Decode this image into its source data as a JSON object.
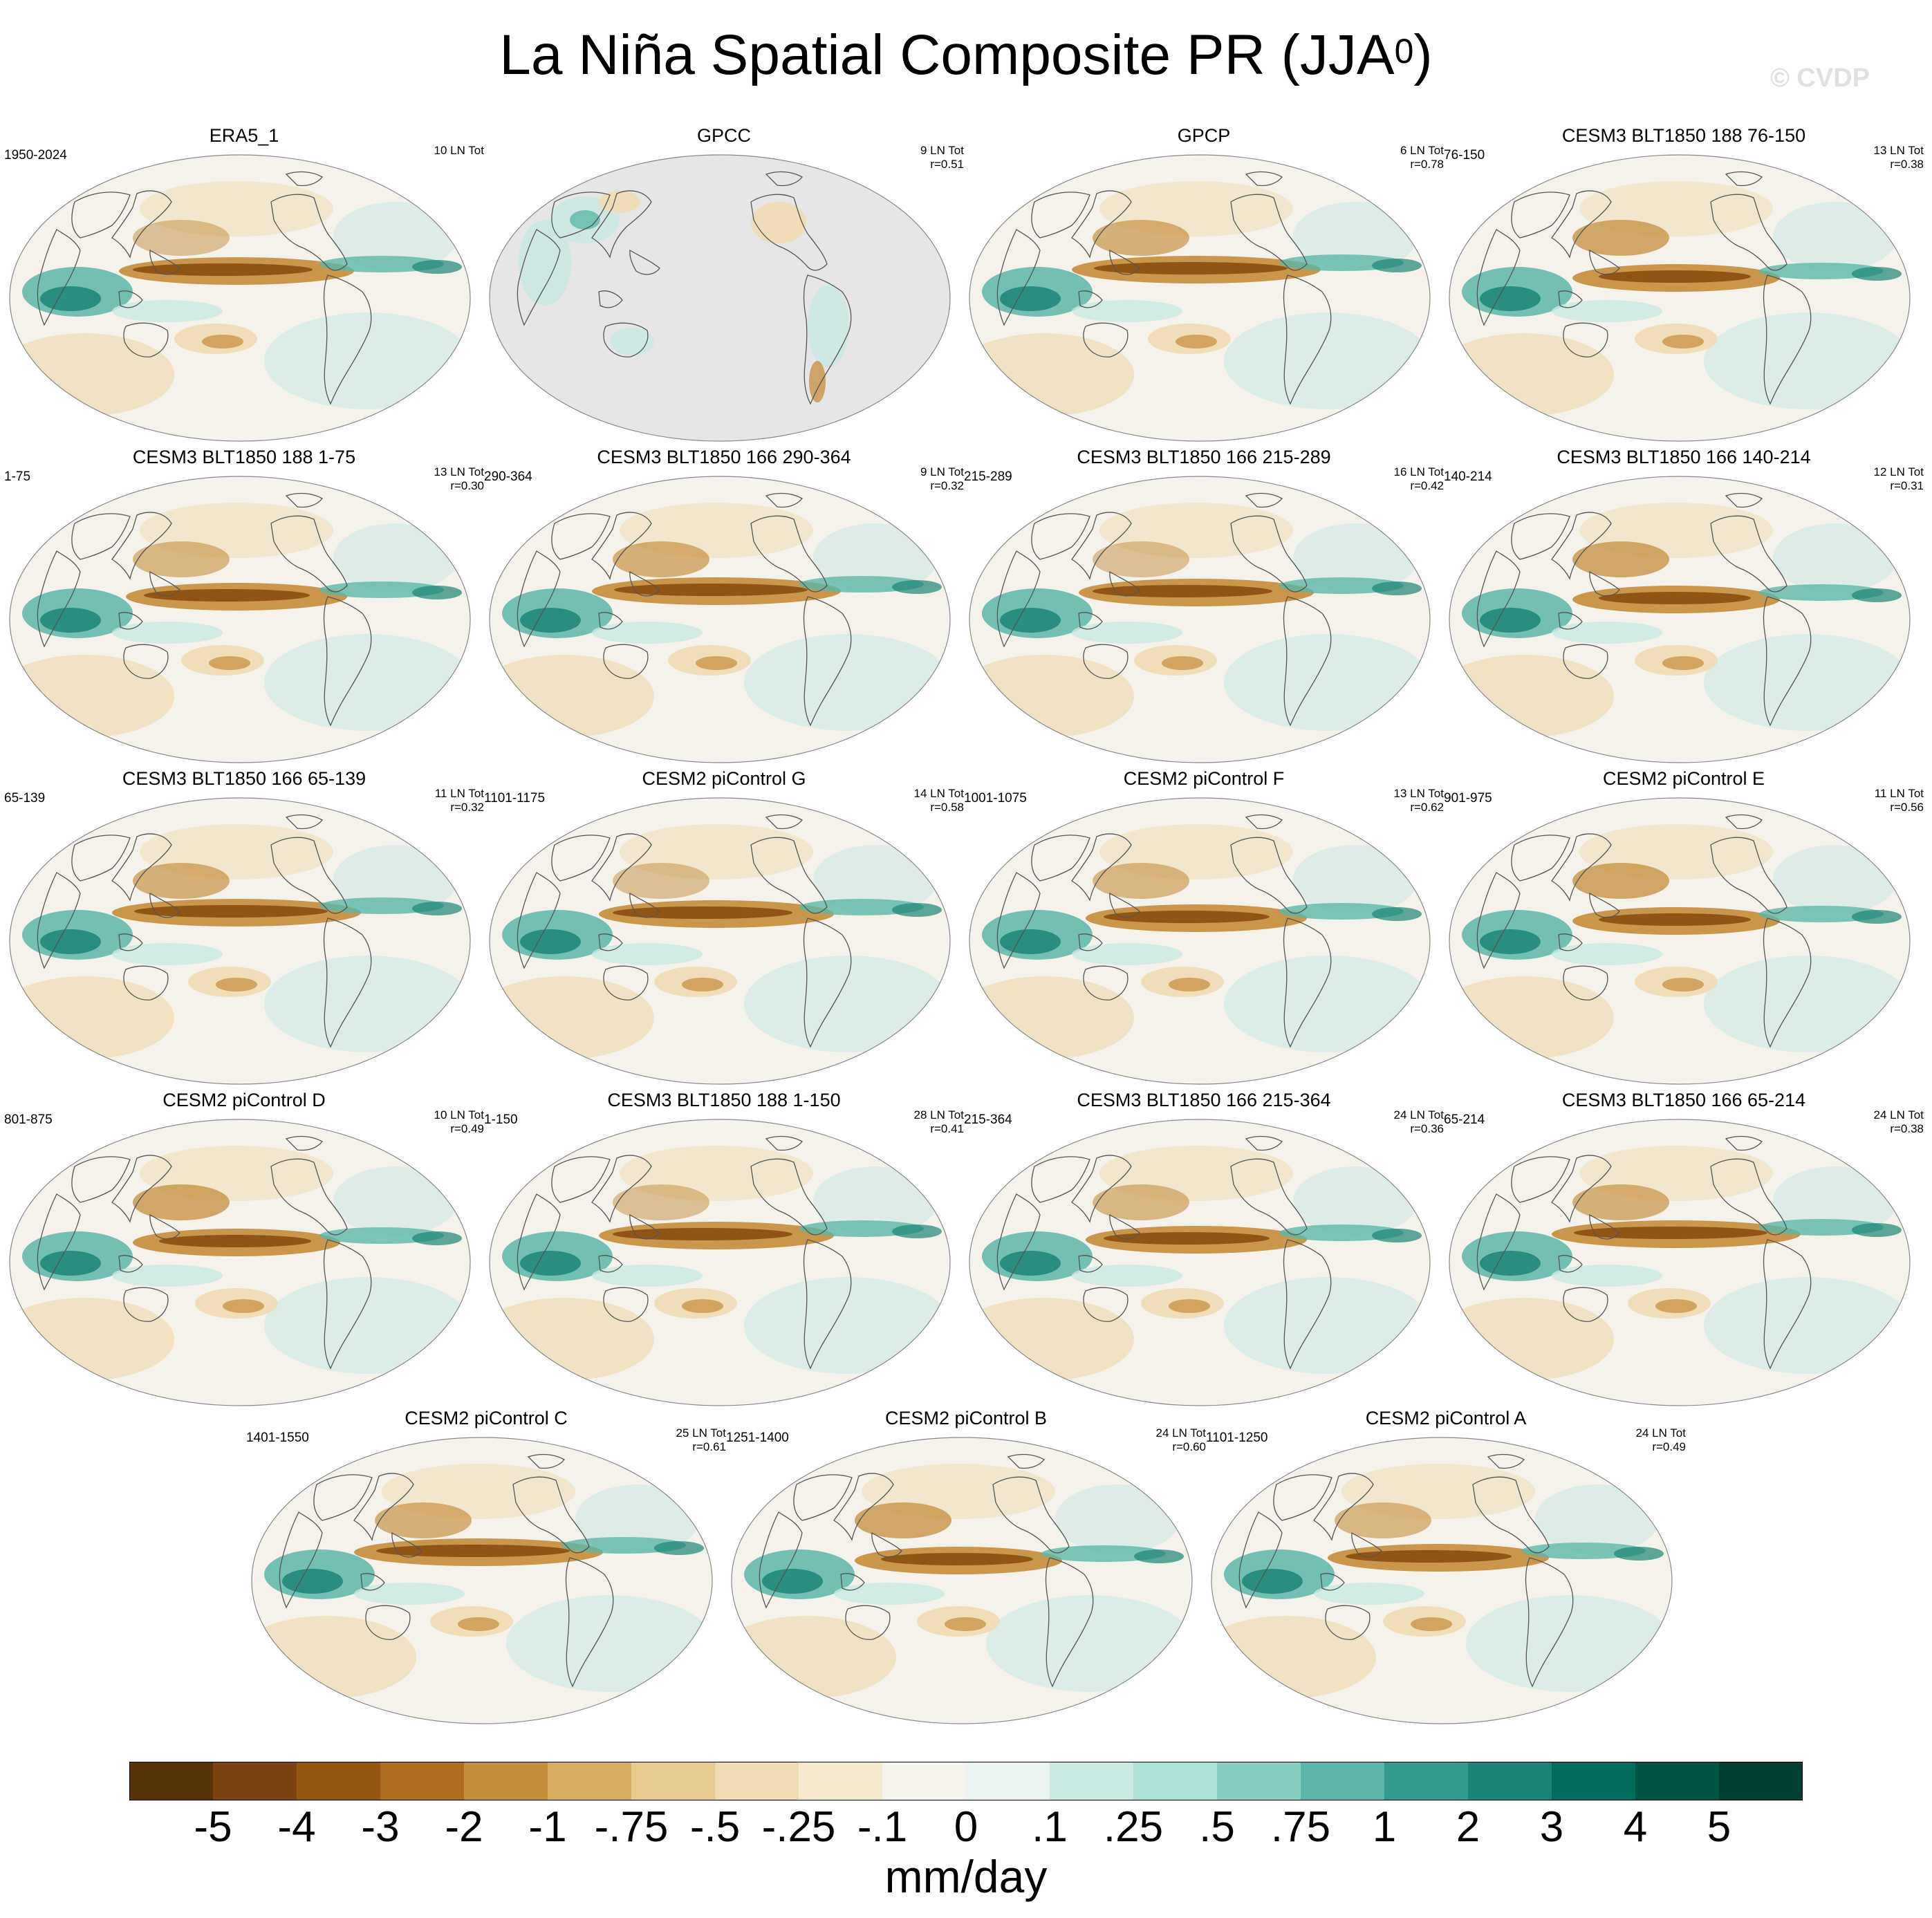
{
  "title": {
    "main": "La Niña Spatial Composite PR (JJA",
    "sup": "0",
    "close": ")"
  },
  "watermark": "© CVDP",
  "panels": [
    {
      "name": "ERA5_1",
      "years": "1950-2024",
      "count": "10 LN Tot",
      "r": "",
      "gpcc": false,
      "style": 0
    },
    {
      "name": "GPCC",
      "years": "",
      "count": "9 LN Tot",
      "r": "r=0.51",
      "gpcc": true,
      "style": 1
    },
    {
      "name": "GPCP",
      "years": "",
      "count": "6 LN Tot",
      "r": "r=0.78",
      "gpcc": false,
      "style": 2
    },
    {
      "name": "CESM3 BLT1850 188 76-150",
      "years": "76-150",
      "count": "13 LN Tot",
      "r": "r=0.38",
      "gpcc": false,
      "style": 3
    },
    {
      "name": "CESM3 BLT1850 188 1-75",
      "years": "1-75",
      "count": "13 LN Tot",
      "r": "r=0.30",
      "gpcc": false,
      "style": 1
    },
    {
      "name": "CESM3 BLT1850 166 290-364",
      "years": "290-364",
      "count": "9 LN Tot",
      "r": "r=0.32",
      "gpcc": false,
      "style": 2
    },
    {
      "name": "CESM3 BLT1850 166 215-289",
      "years": "215-289",
      "count": "16 LN Tot",
      "r": "r=0.42",
      "gpcc": false,
      "style": 0
    },
    {
      "name": "CESM3 BLT1850 166 140-214",
      "years": "140-214",
      "count": "12 LN Tot",
      "r": "r=0.31",
      "gpcc": false,
      "style": 3
    },
    {
      "name": "CESM3 BLT1850 166 65-139",
      "years": "65-139",
      "count": "11 LN Tot",
      "r": "r=0.32",
      "gpcc": false,
      "style": 2
    },
    {
      "name": "CESM2 piControl G",
      "years": "1101-1175",
      "count": "14 LN Tot",
      "r": "r=0.58",
      "gpcc": false,
      "style": 0
    },
    {
      "name": "CESM2 piControl F",
      "years": "1001-1075",
      "count": "13 LN Tot",
      "r": "r=0.62",
      "gpcc": false,
      "style": 1
    },
    {
      "name": "CESM2 piControl E",
      "years": "901-975",
      "count": "11 LN Tot",
      "r": "r=0.56",
      "gpcc": false,
      "style": 3
    },
    {
      "name": "CESM2 piControl D",
      "years": "801-875",
      "count": "10 LN Tot",
      "r": "r=0.49",
      "gpcc": false,
      "style": 3
    },
    {
      "name": "CESM3 BLT1850 188 1-150",
      "years": "1-150",
      "count": "28 LN Tot",
      "r": "r=0.41",
      "gpcc": false,
      "style": 0
    },
    {
      "name": "CESM3 BLT1850 166 215-364",
      "years": "215-364",
      "count": "24 LN Tot",
      "r": "r=0.36",
      "gpcc": false,
      "style": 1
    },
    {
      "name": "CESM3 BLT1850 166 65-214",
      "years": "65-214",
      "count": "24 LN Tot",
      "r": "r=0.38",
      "gpcc": false,
      "style": 2
    },
    {
      "name": "CESM2 piControl C",
      "years": "1401-1550",
      "count": "25 LN Tot",
      "r": "r=0.61",
      "gpcc": false,
      "style": 2
    },
    {
      "name": "CESM2 piControl B",
      "years": "1251-1400",
      "count": "24 LN Tot",
      "r": "r=0.60",
      "gpcc": false,
      "style": 3
    },
    {
      "name": "CESM2 piControl A",
      "years": "1101-1250",
      "count": "24 LN Tot",
      "r": "r=0.49",
      "gpcc": false,
      "style": 1
    }
  ],
  "colorbar": {
    "labels": [
      "-5",
      "-4",
      "-3",
      "-2",
      "-1",
      "-.75",
      "-.5",
      "-.25",
      "-.1",
      "0",
      ".1",
      ".25",
      ".5",
      ".75",
      "1",
      "2",
      "3",
      "4",
      "5"
    ],
    "colors": [
      "#583209",
      "#7b4410",
      "#945412",
      "#b06d22",
      "#c48c3b",
      "#d5ac62",
      "#e5c98f",
      "#efdcb3",
      "#f5ead0",
      "#f5f2ec",
      "#ebf3f2",
      "#cbe8e3",
      "#ade0d8",
      "#84cdc0",
      "#5db6a9",
      "#349a8b",
      "#1c8475",
      "#026b5d",
      "#005446",
      "#003d32"
    ],
    "units": "mm/day"
  },
  "colors": {
    "dry_strong": "#8a4e10",
    "dry": "#c48c3b",
    "dry_light": "#efdcb3",
    "neutral": "#f5f2ec",
    "wet_light": "#cbe8e3",
    "wet": "#5db6a9",
    "wet_strong": "#1c8475",
    "missing": "#e6e6e6",
    "coast": "#555555"
  }
}
